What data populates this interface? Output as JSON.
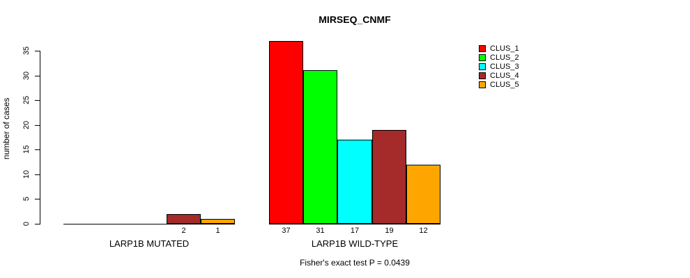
{
  "title": "MIRSEQ_CNMF",
  "y_axis_label": "number of cases",
  "footer": "Fisher's exact test P = 0.0439",
  "chart_data": {
    "type": "bar",
    "title": "MIRSEQ_CNMF",
    "ylabel": "number of cases",
    "ylim": [
      0,
      35
    ],
    "yticks": [
      0,
      5,
      10,
      15,
      20,
      25,
      30,
      35
    ],
    "grid": false,
    "legend_position": "top-right",
    "categories": [
      "LARP1B MUTATED",
      "LARP1B WILD-TYPE"
    ],
    "series": [
      {
        "name": "CLUS_1",
        "color": "#FF0000",
        "values": [
          0,
          37
        ]
      },
      {
        "name": "CLUS_2",
        "color": "#00FF00",
        "values": [
          0,
          31
        ]
      },
      {
        "name": "CLUS_3",
        "color": "#00FFFF",
        "values": [
          0,
          17
        ]
      },
      {
        "name": "CLUS_4",
        "color": "#A52A2A",
        "values": [
          2,
          19
        ]
      },
      {
        "name": "CLUS_5",
        "color": "#FFA500",
        "values": [
          1,
          12
        ]
      }
    ],
    "bar_value_labels": [
      [
        "",
        "",
        "",
        "2",
        "1"
      ],
      [
        "37",
        "31",
        "17",
        "19",
        "12"
      ]
    ],
    "annotation": "Fisher's exact test P = 0.0439"
  }
}
